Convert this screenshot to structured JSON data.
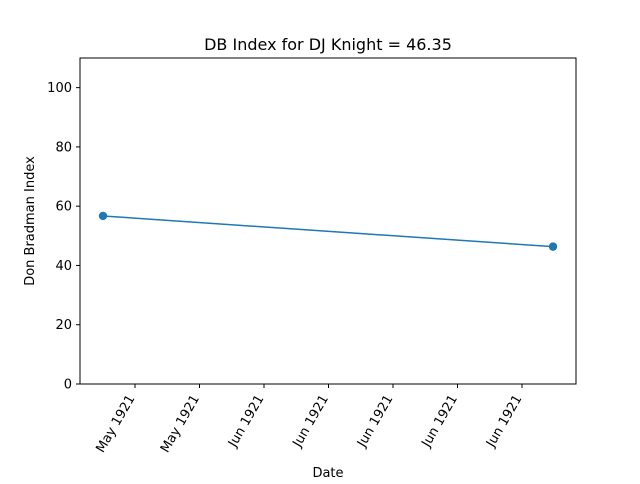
{
  "chart_data": {
    "type": "line",
    "title": "DB Index for DJ Knight = 46.35",
    "xlabel": "Date",
    "ylabel": "Don Bradman Index",
    "x_tick_labels": [
      "May 1921",
      "May 1921",
      "Jun 1921",
      "Jun 1921",
      "Jun 1921",
      "Jun 1921",
      "Jun 1921"
    ],
    "y_ticks": [
      0,
      20,
      40,
      60,
      80,
      100
    ],
    "ylim": [
      0,
      110
    ],
    "grid": false,
    "series": [
      {
        "points": [
          {
            "x": "1921-05-14",
            "y": 56.7
          },
          {
            "x": "1921-07-03",
            "y": 46.35
          }
        ],
        "color": "#1f77b4",
        "marker": "circle"
      }
    ]
  }
}
